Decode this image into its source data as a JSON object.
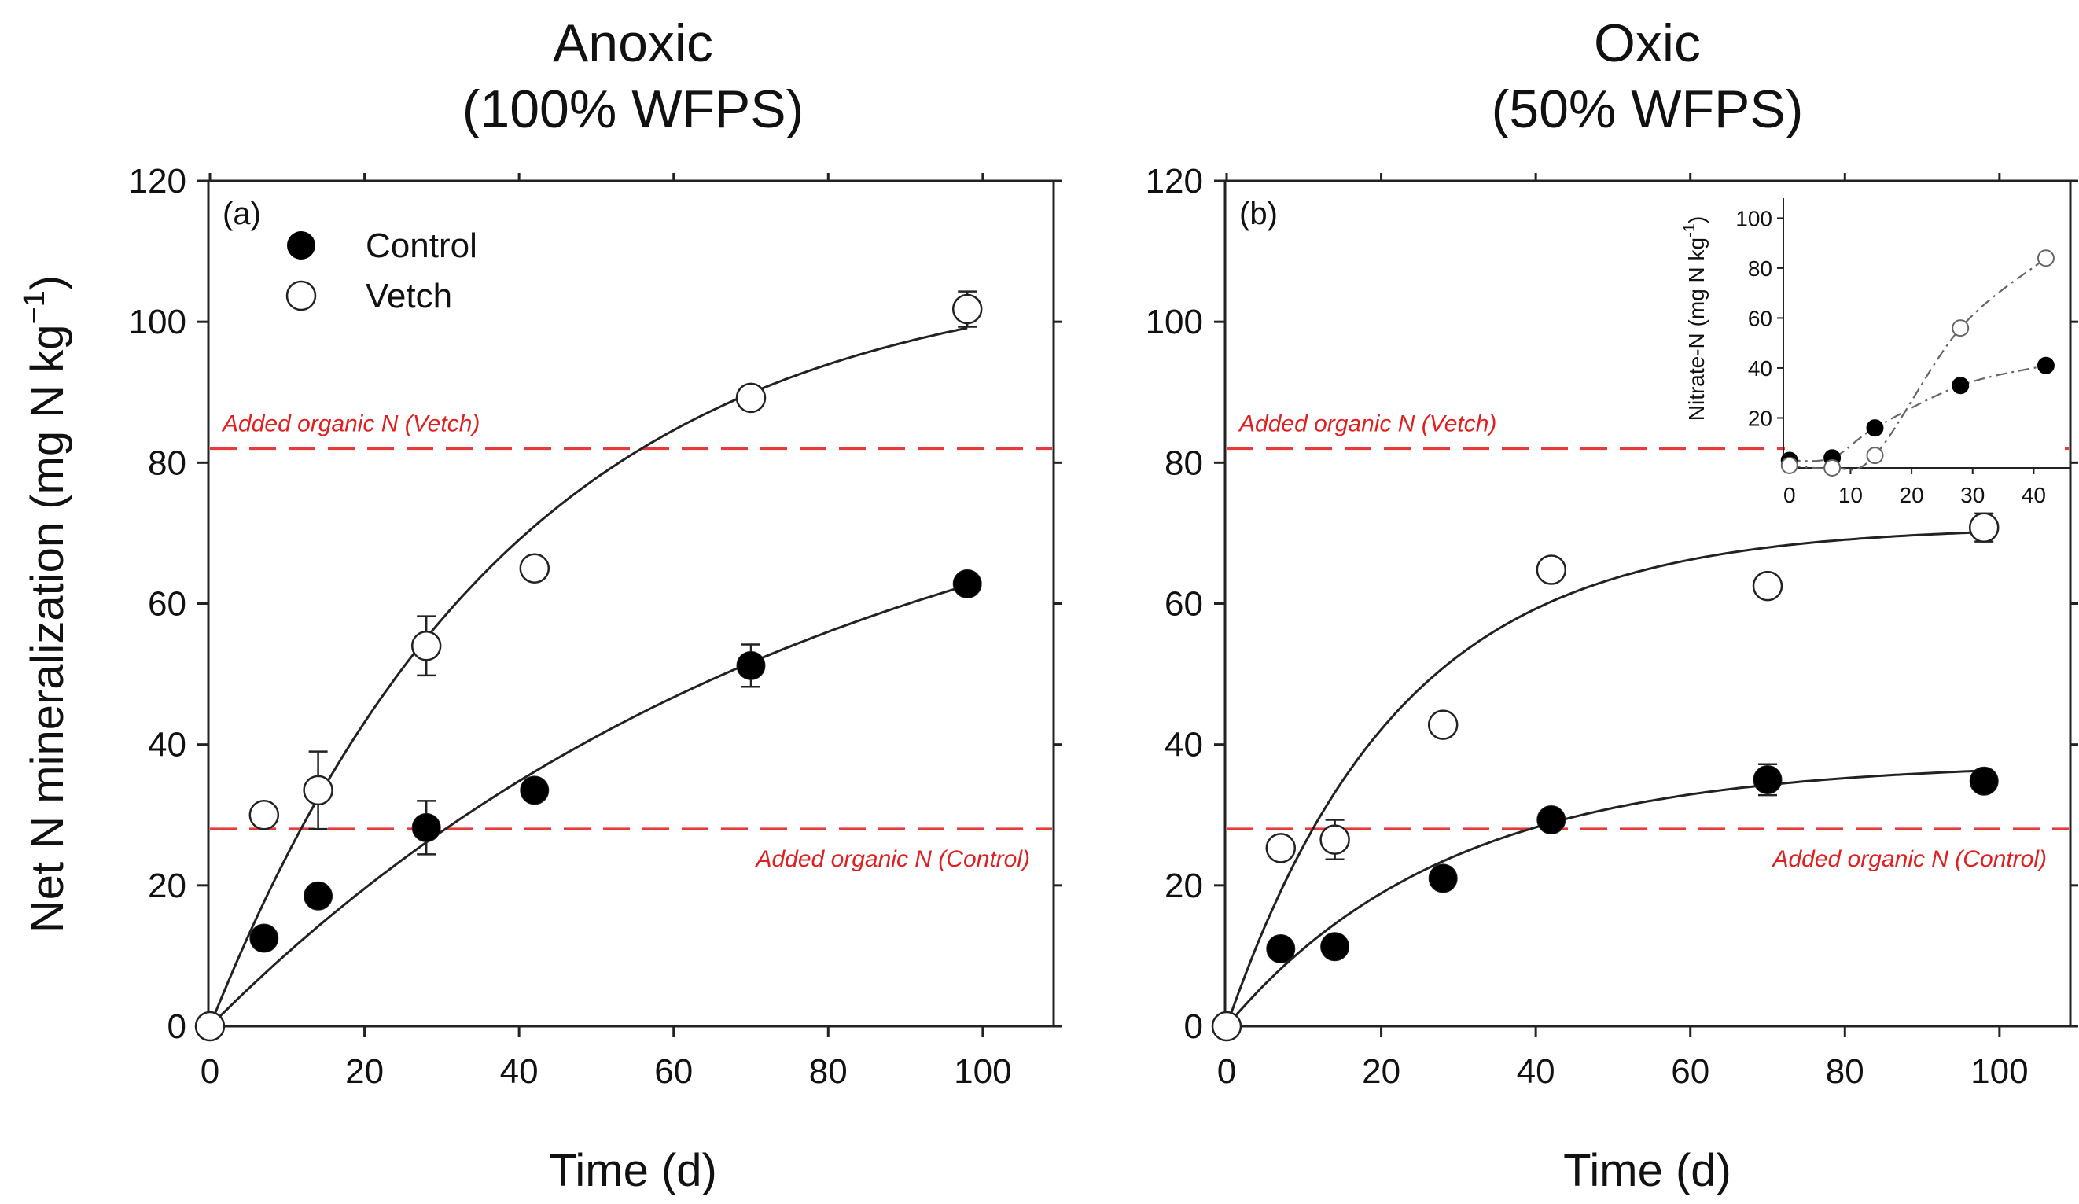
{
  "chart_data": [
    {
      "id": "a",
      "type": "scatter",
      "panel_letter": "(a)",
      "title_line1": "Anoxic",
      "title_line2": "(100% WFPS)",
      "xlabel": "Time (d)",
      "ylabel": "Net N mineralization (mg N kg",
      "ylabel_sup": "−1",
      "ylabel_end": ")",
      "xlim": [
        0,
        105
      ],
      "ylim": [
        0,
        120
      ],
      "xticks": [
        0,
        20,
        40,
        60,
        80,
        100
      ],
      "yticks": [
        0,
        20,
        40,
        60,
        80,
        100,
        120
      ],
      "legend": {
        "placement": "top-left",
        "entries": [
          {
            "name": "Control",
            "marker": "filled-circle"
          },
          {
            "name": "Vetch",
            "marker": "open-circle"
          }
        ]
      },
      "series": [
        {
          "name": "Control",
          "marker": "filled",
          "x": [
            0,
            7,
            14,
            28,
            42,
            70,
            98
          ],
          "y": [
            0,
            12.5,
            18.5,
            28.2,
            33.5,
            51.2,
            62.8
          ],
          "err": [
            0,
            0,
            0,
            3.8,
            0,
            3,
            0
          ],
          "fit": {
            "model": "first-order",
            "N0": 89,
            "k": 0.0124
          }
        },
        {
          "name": "Vetch",
          "marker": "open",
          "x": [
            0,
            7,
            14,
            28,
            42,
            70,
            98
          ],
          "y": [
            0,
            30,
            33.5,
            54,
            65,
            89.2,
            101.8
          ],
          "err": [
            0,
            0,
            5.5,
            4.2,
            0,
            0,
            2.5
          ],
          "fit": {
            "model": "first-order",
            "N0": 108,
            "k": 0.0255
          }
        }
      ],
      "reference_lines": [
        {
          "y": 82,
          "label": "Added organic N (Vetch)",
          "label_anchor": "left"
        },
        {
          "y": 28,
          "label": "Added organic N (Control)",
          "label_anchor": "right"
        }
      ]
    },
    {
      "id": "b",
      "type": "scatter",
      "panel_letter": "(b)",
      "title_line1": "Oxic",
      "title_line2": "(50% WFPS)",
      "xlabel": "Time (d)",
      "xlim": [
        0,
        105
      ],
      "ylim": [
        0,
        120
      ],
      "xticks": [
        0,
        20,
        40,
        60,
        80,
        100
      ],
      "yticks": [
        0,
        20,
        40,
        60,
        80,
        100,
        120
      ],
      "series": [
        {
          "name": "Control",
          "marker": "filled",
          "x": [
            0,
            7,
            14,
            28,
            42,
            70,
            98
          ],
          "y": [
            0,
            11,
            11.3,
            21,
            29.3,
            35,
            34.8
          ],
          "err": [
            0,
            0,
            0,
            0,
            0,
            2.2,
            0
          ],
          "fit": {
            "model": "first-order",
            "N0": 37.5,
            "k": 0.035
          }
        },
        {
          "name": "Vetch",
          "marker": "open",
          "x": [
            0,
            7,
            14,
            28,
            42,
            70,
            98
          ],
          "y": [
            0,
            25.3,
            26.5,
            42.8,
            64.8,
            62.5,
            70.8
          ],
          "err": [
            0,
            0,
            2.8,
            0,
            0,
            0,
            2
          ],
          "fit": {
            "model": "first-order",
            "N0": 71,
            "k": 0.045
          }
        }
      ],
      "reference_lines": [
        {
          "y": 82,
          "label": "Added organic N (Vetch)",
          "label_anchor": "left"
        },
        {
          "y": 28,
          "label": "Added organic N (Control)",
          "label_anchor": "right"
        }
      ],
      "inset": {
        "type": "scatter",
        "ylabel": "Nitrate-N (mg N kg",
        "ylabel_sup": "-1",
        "ylabel_end": ")",
        "xlim": [
          -1,
          46
        ],
        "ylim": [
          0,
          108
        ],
        "xticks": [
          0,
          10,
          20,
          30,
          40
        ],
        "yticks": [
          20,
          40,
          60,
          80,
          100
        ],
        "series": [
          {
            "name": "Control",
            "marker": "filled",
            "x": [
              0,
              7,
              14,
              28,
              42
            ],
            "y": [
              3,
              4,
              16,
              33,
              41
            ]
          },
          {
            "name": "Vetch",
            "marker": "open",
            "x": [
              0,
              7,
              14,
              28,
              42
            ],
            "y": [
              1,
              0,
              5,
              56,
              84
            ]
          }
        ]
      }
    }
  ]
}
